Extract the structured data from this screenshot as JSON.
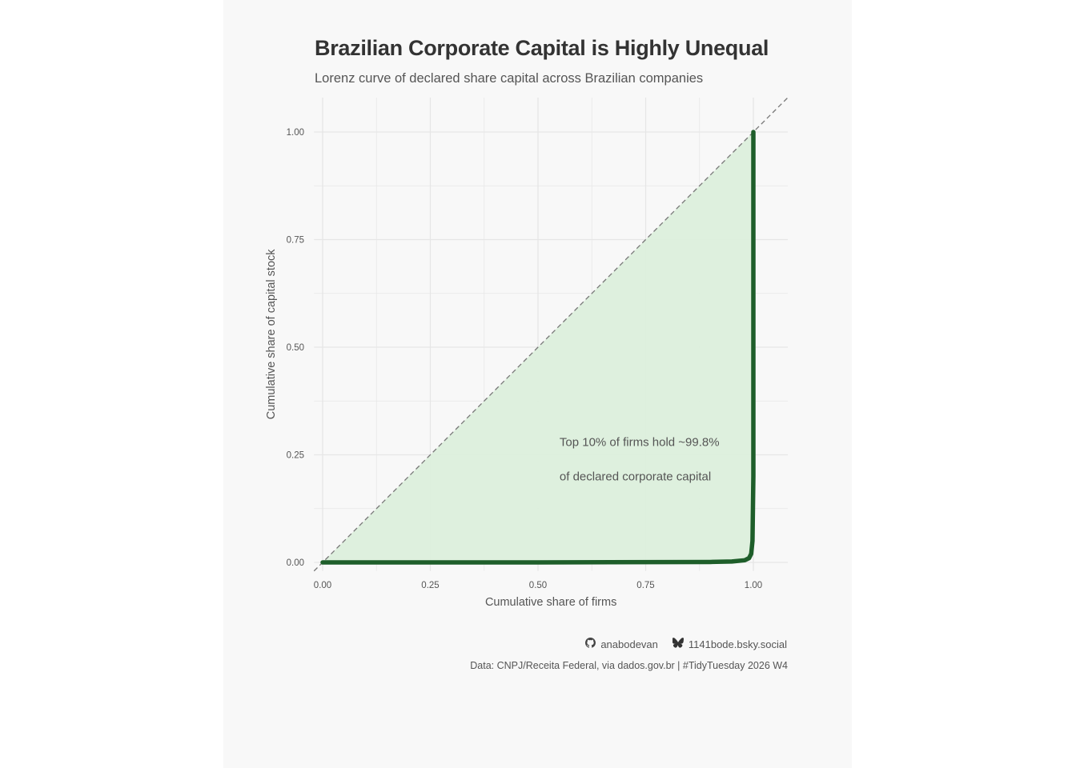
{
  "header": {
    "title": "Brazilian Corporate Capital is Highly Unequal",
    "subtitle": "Lorenz curve of declared share capital across Brazilian companies"
  },
  "chart_data": {
    "type": "line",
    "title": "Brazilian Corporate Capital is Highly Unequal",
    "subtitle": "Lorenz curve of declared share capital across Brazilian companies",
    "xlabel": "Cumulative share of firms",
    "ylabel": "Cumulative share of capital stock",
    "xlim": [
      -0.02,
      1.08
    ],
    "ylim": [
      -0.02,
      1.08
    ],
    "x_ticks": [
      "0.00",
      "0.25",
      "0.50",
      "0.75",
      "1.00"
    ],
    "y_ticks": [
      "0.00",
      "0.25",
      "0.50",
      "0.75",
      "1.00"
    ],
    "grid": true,
    "equality_line": {
      "style": "dashed",
      "color": "#777777"
    },
    "series": [
      {
        "color": "#1e5e2a",
        "fill": "#dcefdc",
        "x": [
          0.0,
          0.5,
          0.9,
          0.95,
          0.98,
          0.99,
          0.995,
          0.998,
          1.0,
          1.0
        ],
        "y": [
          0.0,
          0.0,
          0.001,
          0.002,
          0.005,
          0.01,
          0.02,
          0.05,
          0.2,
          1.0
        ]
      }
    ],
    "annotation": {
      "lines": [
        "Top 10% of firms hold ~99.8%",
        "of declared corporate capital"
      ],
      "x": 0.55,
      "y": 0.27
    },
    "colors": {
      "curve": "#1e5e2a",
      "area": "#dcefdc",
      "grid": "#e6e6e6",
      "background": "#f8f8f8"
    }
  },
  "credits": {
    "github_icon": "github-icon",
    "github_user": "anabodevan",
    "bluesky_icon": "bluesky-butterfly-icon",
    "bluesky_user": "1141bode.bsky.social"
  },
  "caption": "Data: CNPJ/Receita Federal, via dados.gov.br | #TidyTuesday 2026 W4"
}
